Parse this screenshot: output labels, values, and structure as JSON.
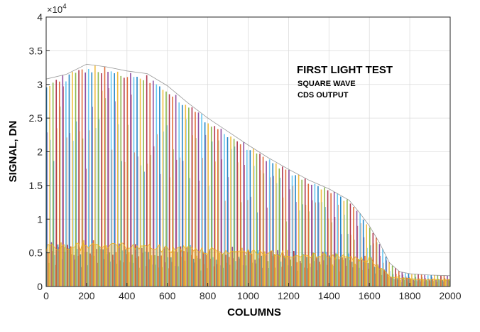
{
  "chart_data": {
    "type": "line",
    "xlabel": "COLUMNS",
    "ylabel": "SIGNAL, DN",
    "y_exponent_label": "×10",
    "y_exponent_power": "4",
    "xlim": [
      0,
      2000
    ],
    "ylim": [
      0,
      40000
    ],
    "grid": true,
    "x_ticks": [
      0,
      200,
      400,
      600,
      800,
      1000,
      1200,
      1400,
      1600,
      1800,
      2000
    ],
    "x_tick_labels": [
      "0",
      "200",
      "400",
      "600",
      "800",
      "1000",
      "1200",
      "1400",
      "1600",
      "1800",
      "2000"
    ],
    "y_ticks": [
      0,
      5000,
      10000,
      15000,
      20000,
      25000,
      30000,
      35000,
      40000
    ],
    "y_tick_labels": [
      "0",
      "0.5",
      "1",
      "1.5",
      "2",
      "2.5",
      "3",
      "3.5",
      "4"
    ],
    "annotations": [
      "FIRST LIGHT TEST",
      "SQUARE WAVE",
      "CDS OUTPUT"
    ],
    "peak_envelope": {
      "x": [
        0,
        100,
        200,
        300,
        400,
        500,
        600,
        700,
        800,
        900,
        1000,
        1100,
        1200,
        1300,
        1400,
        1500,
        1550,
        1600,
        1650,
        1700,
        1750,
        1800,
        1900,
        2000
      ],
      "y": [
        30800,
        31500,
        33000,
        32600,
        32000,
        31600,
        29800,
        27300,
        25000,
        23000,
        21000,
        19100,
        17400,
        15800,
        14500,
        12800,
        11000,
        9000,
        6500,
        3500,
        2200,
        1900,
        1700,
        1600
      ]
    },
    "band_envelope": {
      "x": [
        0,
        200,
        400,
        600,
        800,
        1000,
        1200,
        1400,
        1600,
        1650,
        1700,
        1800,
        2000
      ],
      "y": [
        6000,
        6300,
        6200,
        5900,
        5600,
        5300,
        5000,
        4700,
        4300,
        3000,
        1500,
        1200,
        1000
      ]
    },
    "period_columns": 16,
    "series_colors": [
      "#0072BD",
      "#D95319",
      "#EDB120",
      "#7E2F8E",
      "#77AC30",
      "#4DBEEE",
      "#A2142F"
    ]
  }
}
